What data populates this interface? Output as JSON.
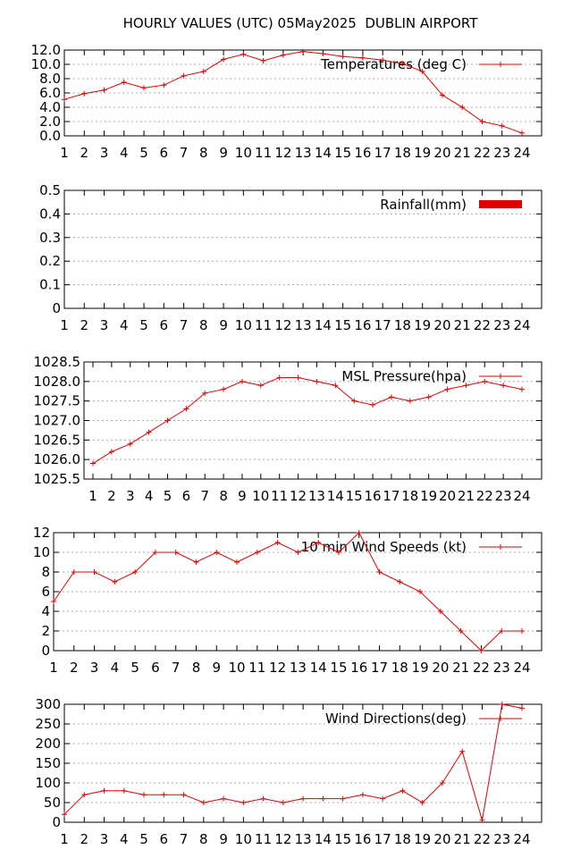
{
  "page": {
    "title": "HOURLY VALUES (UTC) 05May2025  DUBLIN AIRPORT"
  },
  "colors": {
    "series": "#e00000",
    "grid": "#a8a8a8",
    "frame": "#000000"
  },
  "chart_data": [
    {
      "type": "line",
      "legend": "Temperatures (deg C)",
      "legend_position": "top-right",
      "grid": true,
      "x": [
        1,
        2,
        3,
        4,
        5,
        6,
        7,
        8,
        9,
        10,
        11,
        12,
        13,
        14,
        15,
        16,
        17,
        18,
        19,
        20,
        21,
        22,
        23,
        24
      ],
      "values": [
        5.1,
        5.9,
        6.4,
        7.5,
        6.7,
        7.1,
        8.4,
        9.0,
        10.7,
        11.4,
        10.5,
        11.3,
        11.8,
        11.5,
        11.1,
        10.9,
        10.6,
        10.1,
        9.0,
        5.7,
        4.0,
        2.0,
        1.4,
        0.4
      ],
      "ylim": [
        0,
        12
      ],
      "yticks": [
        "0.0",
        "2.0",
        "4.0",
        "6.0",
        "8.0",
        "10.0",
        "12.0"
      ],
      "ytick_values": [
        0,
        2,
        4,
        6,
        8,
        10,
        12
      ]
    },
    {
      "type": "bar",
      "legend": "Rainfall(mm)",
      "legend_position": "top-right",
      "grid": true,
      "x": [
        1,
        2,
        3,
        4,
        5,
        6,
        7,
        8,
        9,
        10,
        11,
        12,
        13,
        14,
        15,
        16,
        17,
        18,
        19,
        20,
        21,
        22,
        23,
        24
      ],
      "values": [
        0,
        0,
        0,
        0,
        0,
        0,
        0,
        0,
        0,
        0,
        0,
        0,
        0,
        0,
        0,
        0,
        0,
        0,
        0,
        0,
        0,
        0,
        0,
        0
      ],
      "ylim": [
        0,
        0.5
      ],
      "yticks": [
        "0",
        "0.1",
        "0.2",
        "0.3",
        "0.4",
        "0.5"
      ],
      "ytick_values": [
        0,
        0.1,
        0.2,
        0.3,
        0.4,
        0.5
      ]
    },
    {
      "type": "line",
      "legend": "MSL Pressure(hpa)",
      "legend_position": "top-right",
      "grid": true,
      "x": [
        1,
        2,
        3,
        4,
        5,
        6,
        7,
        8,
        9,
        10,
        11,
        12,
        13,
        14,
        15,
        16,
        17,
        18,
        19,
        20,
        21,
        22,
        23,
        24
      ],
      "values": [
        1025.9,
        1026.2,
        1026.4,
        1026.7,
        1027.0,
        1027.3,
        1027.7,
        1027.8,
        1028.0,
        1027.9,
        1028.1,
        1028.1,
        1028.0,
        1027.9,
        1027.5,
        1027.4,
        1027.6,
        1027.5,
        1027.6,
        1027.8,
        1027.9,
        1028.0,
        1027.9,
        1027.8
      ],
      "ylim": [
        1025.5,
        1028.5
      ],
      "yticks": [
        "1025.5",
        "1026.0",
        "1026.5",
        "1027.0",
        "1027.5",
        "1028.0",
        "1028.5"
      ],
      "ytick_values": [
        1025.5,
        1026.0,
        1026.5,
        1027.0,
        1027.5,
        1028.0,
        1028.5
      ]
    },
    {
      "type": "line",
      "legend": "10 min Wind Speeds (kt)",
      "legend_position": "top-right",
      "grid": true,
      "x": [
        1,
        2,
        3,
        4,
        5,
        6,
        7,
        8,
        9,
        10,
        11,
        12,
        13,
        14,
        15,
        16,
        17,
        18,
        19,
        20,
        21,
        22,
        23,
        24
      ],
      "values": [
        5,
        8,
        8,
        7,
        8,
        10,
        10,
        9,
        10,
        9,
        10,
        11,
        10,
        11,
        10,
        12,
        8,
        7,
        6,
        4,
        2,
        0,
        2,
        2
      ],
      "ylim": [
        0,
        12
      ],
      "yticks": [
        "0",
        "2",
        "4",
        "6",
        "8",
        "10",
        "12"
      ],
      "ytick_values": [
        0,
        2,
        4,
        6,
        8,
        10,
        12
      ]
    },
    {
      "type": "line",
      "legend": "Wind Directions(deg)",
      "legend_position": "top-right",
      "grid": true,
      "x": [
        1,
        2,
        3,
        4,
        5,
        6,
        7,
        8,
        9,
        10,
        11,
        12,
        13,
        14,
        15,
        16,
        17,
        18,
        19,
        20,
        21,
        22,
        23,
        24
      ],
      "values": [
        20,
        70,
        80,
        80,
        70,
        70,
        70,
        50,
        60,
        50,
        60,
        50,
        60,
        60,
        60,
        70,
        60,
        80,
        50,
        100,
        180,
        5,
        300,
        290
      ],
      "ylim": [
        0,
        300
      ],
      "yticks": [
        "0",
        "50",
        "100",
        "150",
        "200",
        "250",
        "300"
      ],
      "ytick_values": [
        0,
        50,
        100,
        150,
        200,
        250,
        300
      ]
    }
  ]
}
